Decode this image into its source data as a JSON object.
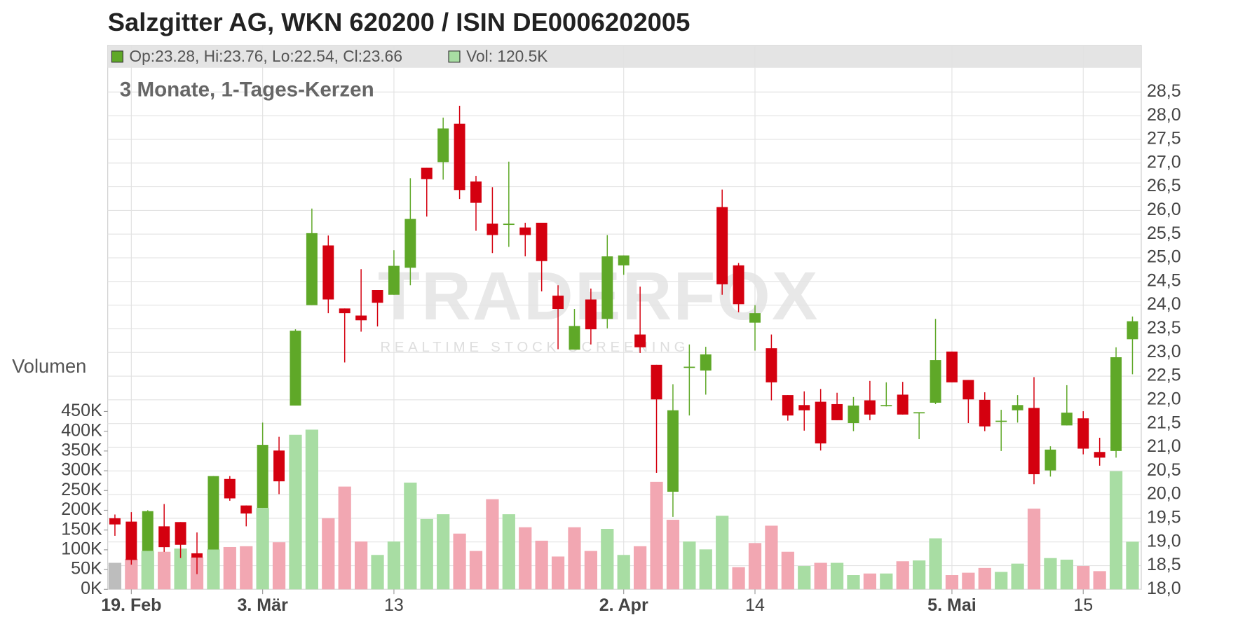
{
  "chart_data": {
    "type": "candlestick",
    "title": "Salzgitter AG, WKN 620200 / ISIN DE0006202005",
    "subtitle": "3 Monate, 1-Tages-Kerzen",
    "volume_axis_label": "Volumen",
    "watermark": "TRADERFOX",
    "watermark_sub": "REALTIME STOCK SCREENING",
    "legend": [
      {
        "label": "Op:23.28, Hi:23.76, Lo:22.54, Cl:23.66",
        "color": "#5fa828"
      },
      {
        "label": "Vol: 120.5K",
        "color": "#a8dda3"
      }
    ],
    "categories": [
      null,
      "19. Feb",
      null,
      null,
      null,
      null,
      null,
      null,
      null,
      "3. Mär",
      null,
      null,
      null,
      null,
      null,
      null,
      null,
      "13",
      null,
      null,
      null,
      null,
      null,
      null,
      null,
      null,
      null,
      null,
      null,
      null,
      null,
      "2. Apr",
      null,
      null,
      null,
      null,
      null,
      null,
      null,
      "14",
      null,
      null,
      null,
      null,
      null,
      null,
      null,
      null,
      null,
      null,
      null,
      "5. Mai",
      null,
      null,
      null,
      null,
      null,
      null,
      null,
      "15",
      null,
      null,
      null
    ],
    "open": [
      19.5,
      19.43,
      18.81,
      19.33,
      19.42,
      18.76,
      18.84,
      20.33,
      19.77,
      19.72,
      20.93,
      21.88,
      24.0,
      25.26,
      23.93,
      23.78,
      24.32,
      24.22,
      24.79,
      26.9,
      27.02,
      27.83,
      26.61,
      25.72,
      25.7,
      25.64,
      25.74,
      24.2,
      23.06,
      24.12,
      23.71,
      24.84,
      23.38,
      22.74,
      20.06,
      22.69,
      22.62,
      26.07,
      24.84,
      23.63,
      23.09,
      22.1,
      21.89,
      21.96,
      21.91,
      21.51,
      21.99,
      21.88,
      22.11,
      21.73,
      21.94,
      23.02,
      22.42,
      22.0,
      21.54,
      21.78,
      21.83,
      20.51,
      21.46,
      21.61,
      20.9,
      20.92,
      23.28
    ],
    "high": [
      19.58,
      19.63,
      19.67,
      19.8,
      19.42,
      19.2,
      20.39,
      20.39,
      19.77,
      21.52,
      21.22,
      23.49,
      26.04,
      25.47,
      23.93,
      24.76,
      24.32,
      25.16,
      26.68,
      26.9,
      27.96,
      28.21,
      26.73,
      26.49,
      27.03,
      25.74,
      25.74,
      24.42,
      23.92,
      24.35,
      25.48,
      25.05,
      24.39,
      22.74,
      22.33,
      23.17,
      23.12,
      26.44,
      24.89,
      24.0,
      23.38,
      22.1,
      22.18,
      22.23,
      22.15,
      22.06,
      22.4,
      22.37,
      22.38,
      21.74,
      23.71,
      23.02,
      22.42,
      22.16,
      21.79,
      22.1,
      22.48,
      21.02,
      22.31,
      21.76,
      21.2,
      23.11,
      23.76
    ],
    "low": [
      19.13,
      18.52,
      18.81,
      18.79,
      18.66,
      18.32,
      18.84,
      19.87,
      19.33,
      19.72,
      20.01,
      21.88,
      24.0,
      23.83,
      22.79,
      23.44,
      23.55,
      24.22,
      24.42,
      25.87,
      26.65,
      26.24,
      25.57,
      25.1,
      25.23,
      25.03,
      24.29,
      23.07,
      23.06,
      23.17,
      23.51,
      24.64,
      22.99,
      20.46,
      19.53,
      21.67,
      22.11,
      24.22,
      23.85,
      23.04,
      21.99,
      21.56,
      21.35,
      20.93,
      21.57,
      21.34,
      21.57,
      21.86,
      21.69,
      21.17,
      21.91,
      22.37,
      21.51,
      21.34,
      20.92,
      21.52,
      20.22,
      20.38,
      21.46,
      20.85,
      20.61,
      20.78,
      22.54
    ],
    "close": [
      19.37,
      18.62,
      19.65,
      18.89,
      18.94,
      18.67,
      20.39,
      19.92,
      19.6,
      21.05,
      20.28,
      23.46,
      25.52,
      24.12,
      23.83,
      23.68,
      24.05,
      24.83,
      25.82,
      26.66,
      27.73,
      26.43,
      26.16,
      25.48,
      25.72,
      25.48,
      24.93,
      23.92,
      23.56,
      23.49,
      25.03,
      25.05,
      23.11,
      22.01,
      21.78,
      22.7,
      22.96,
      24.44,
      24.02,
      23.83,
      22.37,
      21.67,
      21.78,
      21.08,
      21.57,
      21.88,
      21.69,
      21.89,
      21.69,
      21.74,
      22.84,
      22.37,
      22.01,
      21.44,
      21.56,
      21.89,
      20.43,
      20.95,
      21.73,
      20.97,
      20.78,
      22.9,
      23.66
    ],
    "volume": [
      67,
      77,
      97,
      95,
      103,
      81,
      101,
      107,
      109,
      206,
      119,
      391,
      404,
      180,
      260,
      121,
      87,
      121,
      270,
      178,
      190,
      141,
      97,
      228,
      190,
      157,
      123,
      83,
      157,
      97,
      153,
      87,
      109,
      272,
      176,
      121,
      101,
      186,
      56,
      117,
      161,
      95,
      59,
      67,
      67,
      36,
      40,
      40,
      71,
      73,
      129,
      36,
      42,
      54,
      44,
      65,
      204,
      79,
      75,
      59,
      46,
      299,
      120.5
    ],
    "volume_colors": [
      "#bdbdbd",
      "#f2a7b2",
      "#a8dda3",
      "#f2a7b2",
      "#a8dda3",
      "#f2a7b2",
      "#a8dda3",
      "#f2a7b2",
      "#f2a7b2",
      "#a8dda3",
      "#f2a7b2",
      "#a8dda3",
      "#a8dda3",
      "#f2a7b2",
      "#f2a7b2",
      "#f2a7b2",
      "#a8dda3",
      "#a8dda3",
      "#a8dda3",
      "#a8dda3",
      "#a8dda3",
      "#f2a7b2",
      "#f2a7b2",
      "#f2a7b2",
      "#a8dda3",
      "#f2a7b2",
      "#f2a7b2",
      "#f2a7b2",
      "#f2a7b2",
      "#f2a7b2",
      "#a8dda3",
      "#a8dda3",
      "#f2a7b2",
      "#f2a7b2",
      "#f2a7b2",
      "#a8dda3",
      "#a8dda3",
      "#a8dda3",
      "#f2a7b2",
      "#f2a7b2",
      "#f2a7b2",
      "#f2a7b2",
      "#a8dda3",
      "#f2a7b2",
      "#a8dda3",
      "#a8dda3",
      "#f2a7b2",
      "#a8dda3",
      "#f2a7b2",
      "#a8dda3",
      "#a8dda3",
      "#f2a7b2",
      "#f2a7b2",
      "#f2a7b2",
      "#a8dda3",
      "#a8dda3",
      "#f2a7b2",
      "#a8dda3",
      "#a8dda3",
      "#f2a7b2",
      "#f2a7b2",
      "#a8dda3",
      "#a8dda3"
    ],
    "up_color": "#5fa828",
    "down_color": "#d4000f",
    "ylim": [
      18,
      29
    ],
    "yticks": [
      {
        "value": 18,
        "label": "18,0"
      },
      {
        "value": 18.5,
        "label": "18,5"
      },
      {
        "value": 19,
        "label": "19,0"
      },
      {
        "value": 19.5,
        "label": "19,5"
      },
      {
        "value": 20,
        "label": "20,0"
      },
      {
        "value": 20.5,
        "label": "20,5"
      },
      {
        "value": 21,
        "label": "21,0"
      },
      {
        "value": 21.5,
        "label": "21,5"
      },
      {
        "value": 22,
        "label": "22,0"
      },
      {
        "value": 22.5,
        "label": "22,5"
      },
      {
        "value": 23,
        "label": "23,0"
      },
      {
        "value": 23.5,
        "label": "23,5"
      },
      {
        "value": 24,
        "label": "24,0"
      },
      {
        "value": 24.5,
        "label": "24,5"
      },
      {
        "value": 25,
        "label": "25,0"
      },
      {
        "value": 25.5,
        "label": "25,5"
      },
      {
        "value": 26,
        "label": "26,0"
      },
      {
        "value": 26.5,
        "label": "26,5"
      },
      {
        "value": 27,
        "label": "27,0"
      },
      {
        "value": 27.5,
        "label": "27,5"
      },
      {
        "value": 28,
        "label": "28,0"
      },
      {
        "value": 28.5,
        "label": "28,5"
      }
    ],
    "y2lim": [
      0,
      450
    ],
    "y2ticks": [
      {
        "value": 0,
        "label": "0K"
      },
      {
        "value": 50,
        "label": "50K"
      },
      {
        "value": 100,
        "label": "100K"
      },
      {
        "value": 150,
        "label": "150K"
      },
      {
        "value": 200,
        "label": "200K"
      },
      {
        "value": 250,
        "label": "250K"
      },
      {
        "value": 300,
        "label": "300K"
      },
      {
        "value": 350,
        "label": "350K"
      },
      {
        "value": 400,
        "label": "400K"
      },
      {
        "value": 450,
        "label": "450K"
      }
    ],
    "grid": true
  }
}
